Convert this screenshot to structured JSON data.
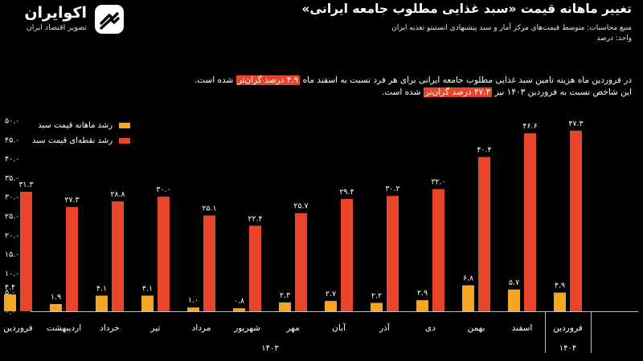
{
  "brand": {
    "name": "اکوایران",
    "tagline": "تصویر اقتصاد ایران",
    "accent": "#e8462a"
  },
  "header": {
    "title": "تغییر ماهانه قیمت «سبد غذایی مطلوب جامعه ایرانی»",
    "source": "منبع محاسبات: متوسط قیمت‌های مرکز آمار و سبد پیشنهادی انستیتو تغذیه ایران",
    "unit": "واحد: درصد"
  },
  "description": {
    "line1_a": "در فروردین ماه هزینه تامین سبد غذایی مطلوب جامعه ایرانی برای هر فرد نسبت به اسفند ماه",
    "line1_hl": "۴.۹ درصد گران‌تر",
    "line1_b": "شده است.",
    "line2_a": "این شاخص نسبت به فروردین ۱۴۰۳ نیز",
    "line2_hl": "۴۷.۳ درصد گران‌تر",
    "line2_b": "شده است."
  },
  "chart_data": {
    "type": "bar",
    "ylim": [
      0,
      50
    ],
    "y_ticks": [
      "۰.۰",
      "۵.۰",
      "۱۰.۰",
      "۱۵.۰",
      "۲۰.۰",
      "۲۵.۰",
      "۳۰.۰",
      "۳۵.۰",
      "۴۰.۰",
      "۴۵.۰",
      "۵۰.۰"
    ],
    "grid": false,
    "legend_position": "top-left",
    "categories": [
      "فروردین",
      "اسفند",
      "بهمن",
      "دی",
      "آذر",
      "آبان",
      "مهر",
      "شهریور",
      "مرداد",
      "تیر",
      "خرداد",
      "اردیبهشت",
      "فروردین"
    ],
    "year_groups": [
      {
        "label": "۱۴۰۴",
        "categories": [
          "فروردین"
        ]
      },
      {
        "label": "۱۴۰۳",
        "categories": [
          "اسفند",
          "بهمن",
          "دی",
          "آذر",
          "آبان",
          "مهر",
          "شهریور",
          "مرداد",
          "تیر",
          "خرداد",
          "اردیبهشت",
          "فروردین"
        ]
      }
    ],
    "series": [
      {
        "name": "رشد ماهانه قیمت سبد",
        "color": "#f5a623",
        "values": [
          4.9,
          5.7,
          6.8,
          2.9,
          2.2,
          2.7,
          2.3,
          0.8,
          1.0,
          4.1,
          4.1,
          1.9,
          4.4
        ],
        "labels": [
          "۴.۹",
          "۵.۷",
          "۶.۸",
          "۲.۹",
          "۲.۲",
          "۲.۷",
          "۲.۳",
          "۰.۸",
          "۱.۰",
          "۴.۱",
          "۴.۱",
          "۱.۹",
          "۴.۴"
        ]
      },
      {
        "name": "رشد نقطه‌ای قیمت سبد",
        "color": "#e8462a",
        "values": [
          47.3,
          46.6,
          40.4,
          32.0,
          30.2,
          29.4,
          25.7,
          22.4,
          25.1,
          30.0,
          28.8,
          27.3,
          31.3
        ],
        "labels": [
          "۴۷.۳",
          "۴۶.۶",
          "۴۰.۴",
          "۳۲.۰",
          "۳۰.۲",
          "۲۹.۴",
          "۲۵.۷",
          "۲۲.۴",
          "۲۵.۱",
          "۳۰.۰",
          "۲۸.۸",
          "۲۷.۳",
          "۳۱.۳"
        ]
      }
    ]
  }
}
